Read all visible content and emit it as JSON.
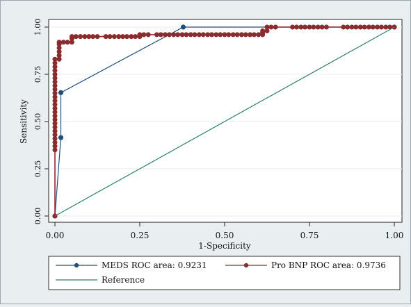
{
  "chart_data": {
    "type": "line",
    "xlabel": "1-Specificity",
    "ylabel": "Sensitivity",
    "xlim": [
      0,
      1
    ],
    "ylim": [
      0,
      1
    ],
    "x_ticks": [
      "0.00",
      "0.25",
      "0.50",
      "0.75",
      "1.00"
    ],
    "y_ticks": [
      "0.00",
      "0.25",
      "0.50",
      "0.75",
      "1.00"
    ],
    "grid": true,
    "legend_position": "bottom",
    "series": [
      {
        "name": "MEDS ROC area: 0.9231",
        "color": "#1f4e79",
        "marker": "circle",
        "points": [
          [
            0.0,
            0.0
          ],
          [
            0.0175,
            0.415
          ],
          [
            0.0175,
            0.653
          ],
          [
            0.378,
            1.0
          ],
          [
            1.0,
            1.0
          ]
        ]
      },
      {
        "name": "Pro BNP ROC area: 0.9736",
        "color": "#8b2b2e",
        "marker": "circle",
        "points": [
          [
            0.0,
            0.0
          ],
          [
            0.0,
            0.35
          ],
          [
            0.0,
            0.37
          ],
          [
            0.0,
            0.39
          ],
          [
            0.0,
            0.41
          ],
          [
            0.0,
            0.43
          ],
          [
            0.0,
            0.45
          ],
          [
            0.0,
            0.47
          ],
          [
            0.0,
            0.49
          ],
          [
            0.0,
            0.51
          ],
          [
            0.0,
            0.53
          ],
          [
            0.0,
            0.55
          ],
          [
            0.0,
            0.57
          ],
          [
            0.0,
            0.59
          ],
          [
            0.0,
            0.61
          ],
          [
            0.0,
            0.63
          ],
          [
            0.0,
            0.65
          ],
          [
            0.0,
            0.67
          ],
          [
            0.0,
            0.69
          ],
          [
            0.0,
            0.71
          ],
          [
            0.0,
            0.73
          ],
          [
            0.0,
            0.75
          ],
          [
            0.0,
            0.77
          ],
          [
            0.0,
            0.79
          ],
          [
            0.0,
            0.81
          ],
          [
            0.0,
            0.83
          ],
          [
            0.0125,
            0.83
          ],
          [
            0.0125,
            0.85
          ],
          [
            0.0125,
            0.87
          ],
          [
            0.0125,
            0.89
          ],
          [
            0.0125,
            0.91
          ],
          [
            0.0125,
            0.92
          ],
          [
            0.025,
            0.92
          ],
          [
            0.037,
            0.92
          ],
          [
            0.05,
            0.92
          ],
          [
            0.05,
            0.94
          ],
          [
            0.05,
            0.95
          ],
          [
            0.062,
            0.95
          ],
          [
            0.075,
            0.95
          ],
          [
            0.088,
            0.95
          ],
          [
            0.1,
            0.95
          ],
          [
            0.112,
            0.95
          ],
          [
            0.125,
            0.95
          ],
          [
            0.15,
            0.95
          ],
          [
            0.162,
            0.95
          ],
          [
            0.175,
            0.95
          ],
          [
            0.188,
            0.95
          ],
          [
            0.2,
            0.95
          ],
          [
            0.212,
            0.95
          ],
          [
            0.225,
            0.95
          ],
          [
            0.237,
            0.95
          ],
          [
            0.25,
            0.95
          ],
          [
            0.25,
            0.96
          ],
          [
            0.262,
            0.96
          ],
          [
            0.275,
            0.96
          ],
          [
            0.3,
            0.96
          ],
          [
            0.312,
            0.96
          ],
          [
            0.325,
            0.96
          ],
          [
            0.337,
            0.96
          ],
          [
            0.35,
            0.96
          ],
          [
            0.362,
            0.96
          ],
          [
            0.375,
            0.96
          ],
          [
            0.387,
            0.96
          ],
          [
            0.4,
            0.96
          ],
          [
            0.412,
            0.96
          ],
          [
            0.425,
            0.96
          ],
          [
            0.437,
            0.96
          ],
          [
            0.45,
            0.96
          ],
          [
            0.462,
            0.96
          ],
          [
            0.475,
            0.96
          ],
          [
            0.487,
            0.96
          ],
          [
            0.5,
            0.96
          ],
          [
            0.512,
            0.96
          ],
          [
            0.525,
            0.96
          ],
          [
            0.537,
            0.96
          ],
          [
            0.55,
            0.96
          ],
          [
            0.562,
            0.96
          ],
          [
            0.575,
            0.96
          ],
          [
            0.587,
            0.96
          ],
          [
            0.6,
            0.96
          ],
          [
            0.612,
            0.96
          ],
          [
            0.612,
            0.97
          ],
          [
            0.612,
            0.98
          ],
          [
            0.625,
            0.98
          ],
          [
            0.625,
            1.0
          ],
          [
            0.637,
            1.0
          ],
          [
            0.65,
            1.0
          ],
          [
            0.7,
            1.0
          ],
          [
            0.712,
            1.0
          ],
          [
            0.725,
            1.0
          ],
          [
            0.737,
            1.0
          ],
          [
            0.75,
            1.0
          ],
          [
            0.762,
            1.0
          ],
          [
            0.775,
            1.0
          ],
          [
            0.787,
            1.0
          ],
          [
            0.8,
            1.0
          ],
          [
            0.85,
            1.0
          ],
          [
            0.862,
            1.0
          ],
          [
            0.875,
            1.0
          ],
          [
            0.887,
            1.0
          ],
          [
            0.9,
            1.0
          ],
          [
            0.912,
            1.0
          ],
          [
            0.925,
            1.0
          ],
          [
            0.937,
            1.0
          ],
          [
            0.95,
            1.0
          ],
          [
            0.962,
            1.0
          ],
          [
            0.975,
            1.0
          ],
          [
            0.987,
            1.0
          ],
          [
            1.0,
            1.0
          ]
        ]
      },
      {
        "name": "Reference",
        "color": "#2e7d6b",
        "marker": "none",
        "points": [
          [
            0,
            0
          ],
          [
            1,
            1
          ]
        ]
      }
    ]
  }
}
